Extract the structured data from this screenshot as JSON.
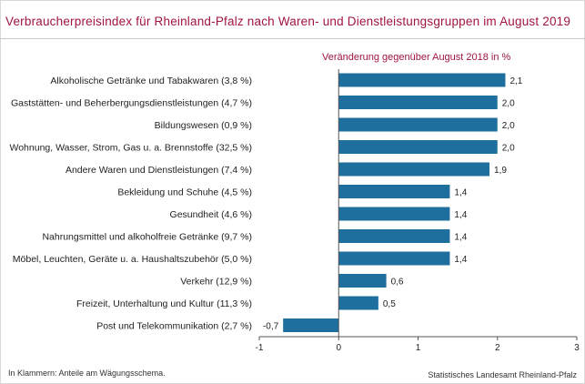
{
  "title": "Verbraucherpreisindex für Rheinland-Pfalz nach Waren- und Dienstleistungsgruppen im August 2019",
  "footnote": "In Klammern: Anteile am Wägungsschema.",
  "source": "Statistisches Landesamt Rheinland-Pfalz",
  "colors": {
    "bar": "#1f6f9e",
    "title": "#a0153e"
  },
  "chart_data": {
    "type": "bar",
    "orientation": "horizontal",
    "title": "Veränderung gegenüber August 2018 in %",
    "categories": [
      "Alkoholische Getränke und Tabakwaren (3,8 %)",
      "Gaststätten- und Beherbergungsdienstleistungen (4,7 %)",
      "Bildungswesen (0,9 %)",
      "Wohnung, Wasser, Strom, Gas u. a. Brennstoffe (32,5 %)",
      "Andere Waren und Dienstleistungen (7,4 %)",
      "Bekleidung und Schuhe (4,5 %)",
      "Gesundheit (4,6 %)",
      "Nahrungsmittel und alkoholfreie Getränke (9,7 %)",
      "Möbel, Leuchten, Geräte u. a. Haushaltszubehör (5,0 %)",
      "Verkehr (12,9 %)",
      "Freizeit, Unterhaltung und Kultur (11,3 %)",
      "Post und Telekommunikation (2,7 %)"
    ],
    "values": [
      2.1,
      2.0,
      2.0,
      2.0,
      1.9,
      1.4,
      1.4,
      1.4,
      1.4,
      0.6,
      0.5,
      -0.7
    ],
    "value_labels": [
      "2,1",
      "2,0",
      "2,0",
      "2,0",
      "1,9",
      "1,4",
      "1,4",
      "1,4",
      "1,4",
      "0,6",
      "0,5",
      "-0,7"
    ],
    "xlim": [
      -1,
      3
    ],
    "xticks": [
      -1,
      0,
      1,
      2,
      3
    ],
    "xtick_labels": [
      "-1",
      "0",
      "1",
      "2",
      "3"
    ],
    "grid": false,
    "legend": "none"
  }
}
